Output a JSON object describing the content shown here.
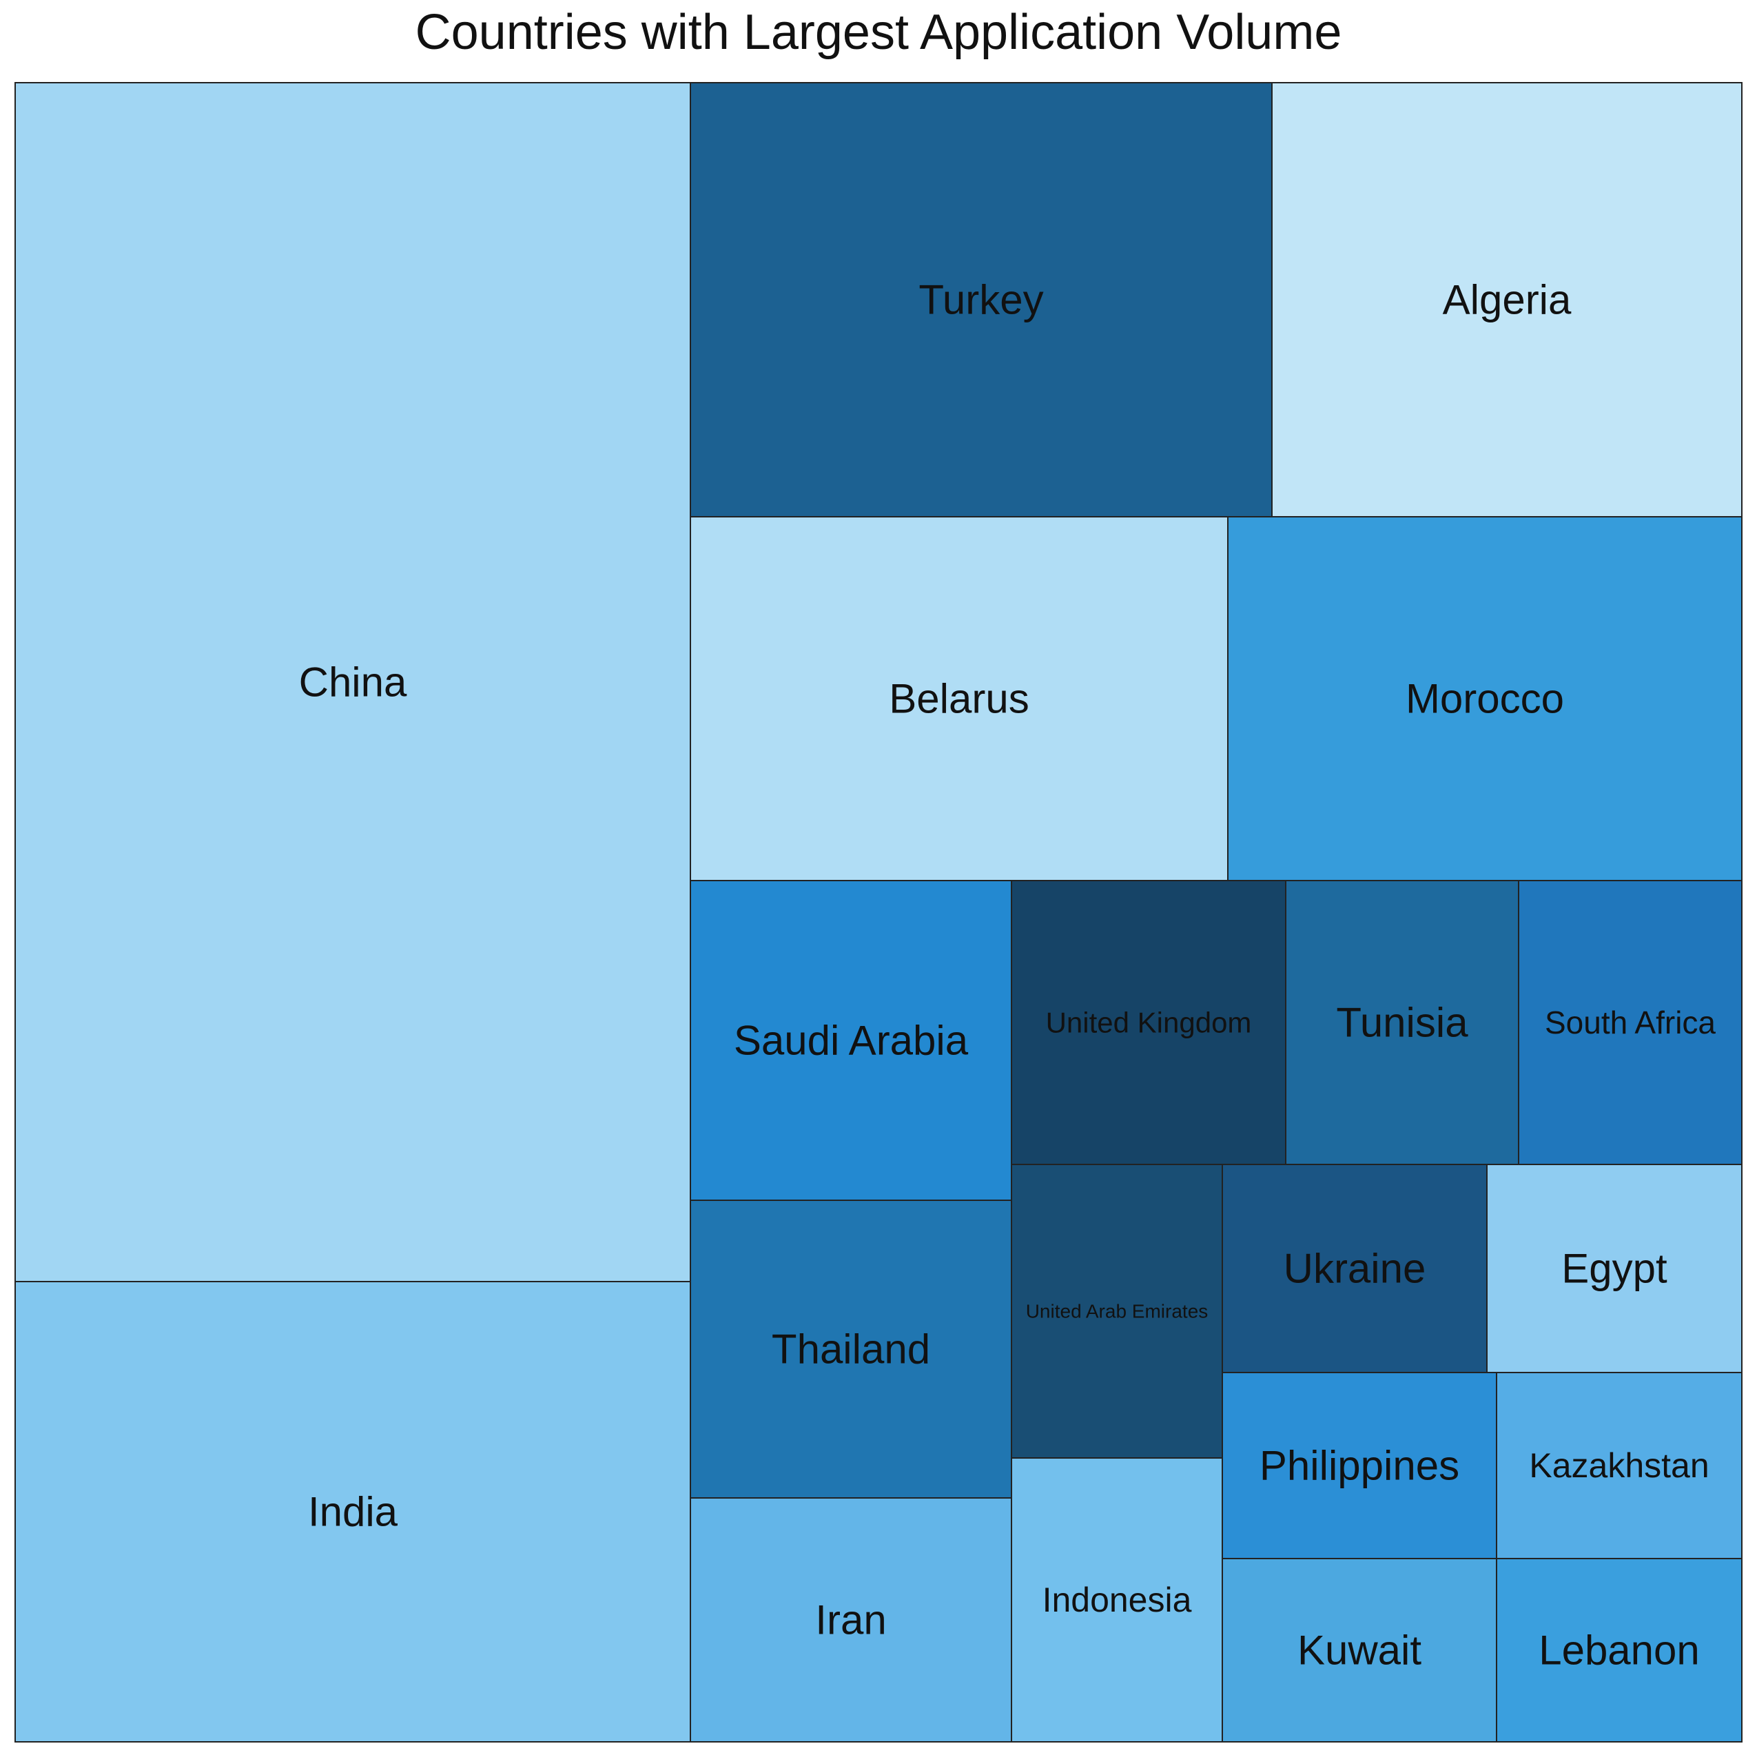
{
  "chart_data": {
    "type": "treemap",
    "title": "Countries with Largest Application Volume",
    "items": [
      {
        "label": "China",
        "value": 900,
        "color": "#a1d6f3"
      },
      {
        "label": "India",
        "value": 347,
        "color": "#82c7ef"
      },
      {
        "label": "Turkey",
        "value": 319,
        "color": "#1c6192"
      },
      {
        "label": "Algeria",
        "value": 258,
        "color": "#c1e5f7"
      },
      {
        "label": "Belarus",
        "value": 246,
        "color": "#b0ddf5"
      },
      {
        "label": "Morocco",
        "value": 226,
        "color": "#369cdb"
      },
      {
        "label": "Saudi Arabia",
        "value": 129,
        "color": "#2389d1"
      },
      {
        "label": "Thailand",
        "value": 121,
        "color": "#2076b1"
      },
      {
        "label": "Iran",
        "value": 87,
        "color": "#63b5e8"
      },
      {
        "label": "United Kingdom",
        "value": 98,
        "color": "#164467"
      },
      {
        "label": "United Arab Emirates",
        "value": 77,
        "color": "#194e74"
      },
      {
        "label": "Indonesia",
        "value": 77,
        "color": "#73c0ed"
      },
      {
        "label": "Tunisia",
        "value": 82,
        "color": "#1e6a9e"
      },
      {
        "label": "South Africa",
        "value": 82,
        "color": "#2077bc"
      },
      {
        "label": "Ukraine",
        "value": 55,
        "color": "#1b5584"
      },
      {
        "label": "Egypt",
        "value": 55,
        "color": "#8fccf1"
      },
      {
        "label": "Philippines",
        "value": 55,
        "color": "#2b8fd6"
      },
      {
        "label": "Kazakhstan",
        "value": 45,
        "color": "#55ade6"
      },
      {
        "label": "Kuwait",
        "value": 55,
        "color": "#4ca8e0"
      },
      {
        "label": "Lebanon",
        "value": 45,
        "color": "#3a9fde"
      }
    ]
  }
}
